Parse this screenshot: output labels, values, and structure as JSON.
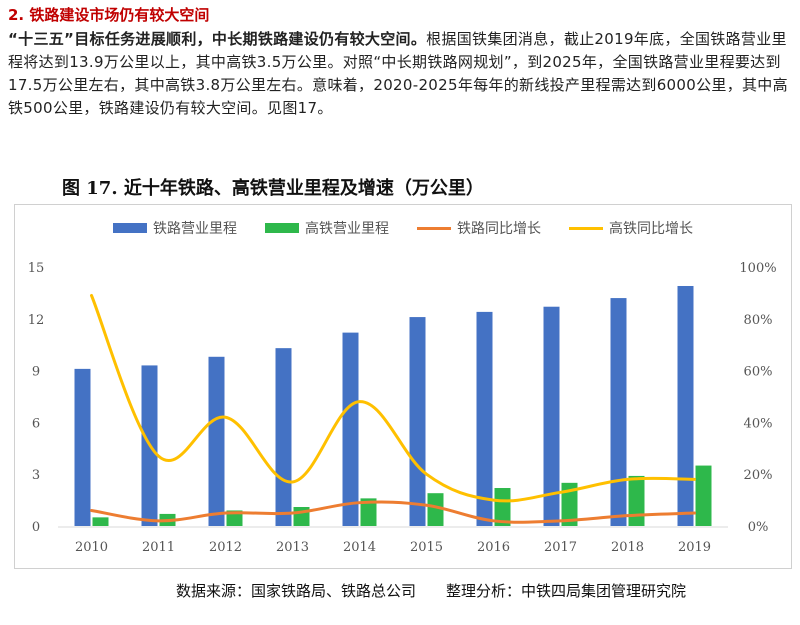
{
  "section": {
    "heading": "2. 铁路建设市场仍有较大空间",
    "lead_bold": "“十三五”目标任务进展顺利，中长期铁路建设仍有较大空间。",
    "body": "根据国铁集团消息，截止2019年底，全国铁路营业里程将达到13.9万公里以上，其中高铁3.5万公里。对照“中长期铁路网规划”，到2025年，全国铁路营业里程要达到17.5万公里左右，其中高铁3.8万公里左右。意味着，2020-2025年每年的新线投产里程需达到6000公里，其中高铁500公里，铁路建设仍有较大空间。见图17。"
  },
  "figure": {
    "title": "图 17. 近十年铁路、高铁营业里程及增速（万公里）",
    "source": "数据来源：国家铁路局、铁路总公司　　整理分析：中铁四局集团管理研究院"
  },
  "colors": {
    "rail_km": "#4472c4",
    "hsr_km": "#2eb84b",
    "rail_growth": "#ed7d31",
    "hsr_growth": "#ffc000"
  },
  "chart_data": {
    "type": "bar",
    "title": "图 17. 近十年铁路、高铁营业里程及增速（万公里）",
    "categories": [
      "2010",
      "2011",
      "2012",
      "2013",
      "2014",
      "2015",
      "2016",
      "2017",
      "2018",
      "2019"
    ],
    "series": [
      {
        "name": "铁路营业里程",
        "kind": "bar",
        "axis": "left",
        "values": [
          9.1,
          9.3,
          9.8,
          10.3,
          11.2,
          12.1,
          12.4,
          12.7,
          13.2,
          13.9
        ]
      },
      {
        "name": "高铁营业里程",
        "kind": "bar",
        "axis": "left",
        "values": [
          0.5,
          0.7,
          0.9,
          1.1,
          1.6,
          1.9,
          2.2,
          2.5,
          2.9,
          3.5
        ]
      },
      {
        "name": "铁路同比增长",
        "kind": "line",
        "axis": "right",
        "values": [
          0.06,
          0.02,
          0.05,
          0.05,
          0.09,
          0.08,
          0.02,
          0.02,
          0.04,
          0.05
        ]
      },
      {
        "name": "高铁同比增长",
        "kind": "line",
        "axis": "right",
        "values": [
          0.89,
          0.27,
          0.42,
          0.17,
          0.48,
          0.2,
          0.1,
          0.13,
          0.18,
          0.18
        ]
      }
    ],
    "ylim_left": [
      0,
      15
    ],
    "yticks_left": [
      "0",
      "3",
      "6",
      "9",
      "12",
      "15"
    ],
    "ylim_right": [
      0,
      1
    ],
    "yticks_right": [
      "0%",
      "20%",
      "40%",
      "60%",
      "80%",
      "100%"
    ],
    "grid": false,
    "legend": "top"
  }
}
